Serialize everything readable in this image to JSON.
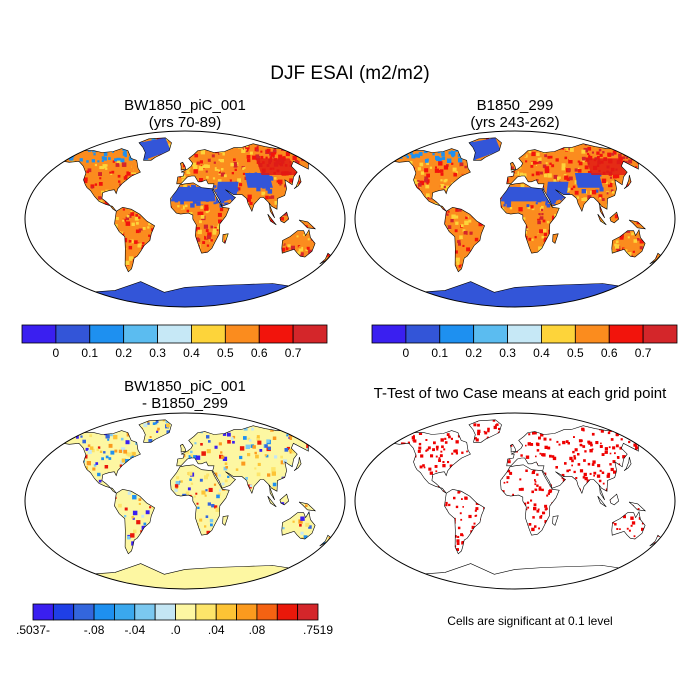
{
  "title": "DJF ESAI (m2/m2)",
  "panels": [
    {
      "line1": "BW1850_piC_001",
      "line2": "(yrs 70-89)"
    },
    {
      "line1": "B1850_299",
      "line2": "(yrs 243-262)"
    },
    {
      "line1": "BW1850_piC_001",
      "line2": "- B1850_299"
    },
    {
      "line1": "T-Test of two Case means at each grid point",
      "line2": ""
    }
  ],
  "significance_note": "Cells are significant at 0.1 level",
  "colorbar_top": {
    "colors": [
      "#3a1ff0",
      "#3355d8",
      "#1e90f0",
      "#5bbcf0",
      "#c6e8f6",
      "#fdd43a",
      "#fb8c1e",
      "#f2140c",
      "#d4262a"
    ],
    "labels": [
      "0",
      "0.1",
      "0.2",
      "0.3",
      "0.4",
      "0.5",
      "0.6",
      "0.7"
    ]
  },
  "colorbar_diff": {
    "colors": [
      "#3a1ff0",
      "#1f3fe6",
      "#3366dd",
      "#1e90f0",
      "#3aa8ee",
      "#7bc8f0",
      "#c4e6f4",
      "#fdf7a2",
      "#fde56a",
      "#fdc335",
      "#fb9a1e",
      "#f56212",
      "#ea180a",
      "#d4262a"
    ],
    "labels": [
      ".5037-",
      "-.08",
      "-.04",
      ".0",
      ".04",
      ".08",
      ".7519"
    ],
    "label_positions": [
      0,
      3,
      5,
      7,
      9,
      11,
      14
    ]
  },
  "chart_data": [
    {
      "type": "heatmap",
      "title": "BW1850_piC_001 (yrs 70-89)",
      "colormap_levels": [
        0,
        0.1,
        0.2,
        0.3,
        0.4,
        0.5,
        0.6,
        0.7
      ]
    },
    {
      "type": "heatmap",
      "title": "B1850_299 (yrs 243-262)",
      "colormap_levels": [
        0,
        0.1,
        0.2,
        0.3,
        0.4,
        0.5,
        0.6,
        0.7
      ]
    },
    {
      "type": "heatmap",
      "title": "BW1850_piC_001 - B1850_299",
      "range": [
        -0.5037,
        0.7519
      ],
      "colormap_levels": [
        -0.08,
        -0.04,
        0.0,
        0.04,
        0.08
      ]
    },
    {
      "type": "heatmap",
      "title": "T-Test of two Case means at each grid point",
      "significance_level": 0.1
    }
  ]
}
